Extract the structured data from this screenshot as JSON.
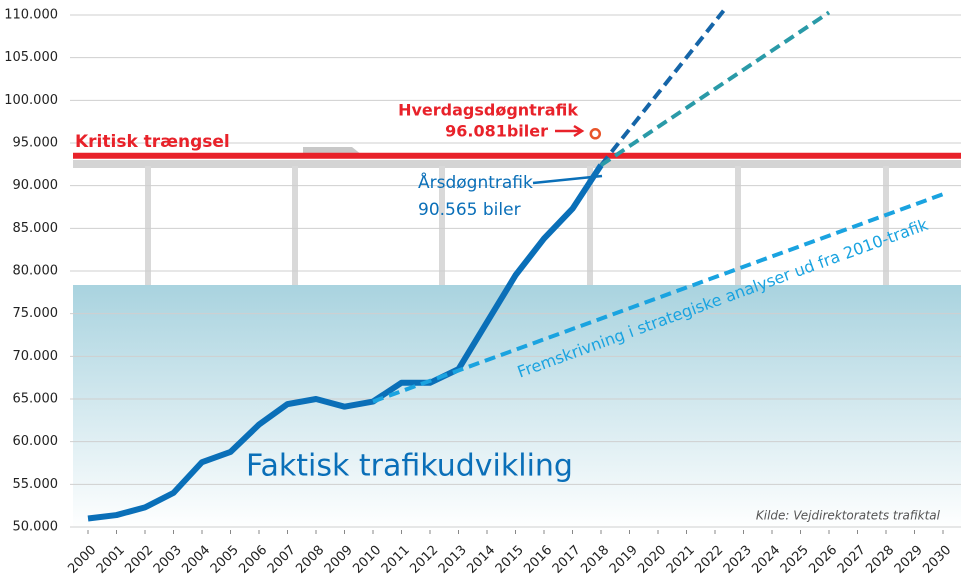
{
  "chart_data": {
    "type": "line",
    "xlim": [
      2000,
      2030
    ],
    "xticks": [
      2000,
      2001,
      2002,
      2003,
      2004,
      2005,
      2006,
      2007,
      2008,
      2009,
      2010,
      2011,
      2012,
      2013,
      2014,
      2015,
      2016,
      2017,
      2018,
      2019,
      2020,
      2021,
      2022,
      2023,
      2024,
      2025,
      2026,
      2027,
      2028,
      2029,
      2030
    ],
    "ylim": [
      50000,
      110000
    ],
    "yticks": [
      {
        "value": 50000,
        "label": "50.000"
      },
      {
        "value": 55000,
        "label": "55.000"
      },
      {
        "value": 60000,
        "label": "60.000"
      },
      {
        "value": 65000,
        "label": "65.000"
      },
      {
        "value": 70000,
        "label": "70.000"
      },
      {
        "value": 75000,
        "label": "75.000"
      },
      {
        "value": 80000,
        "label": "80.000"
      },
      {
        "value": 85000,
        "label": "85.000"
      },
      {
        "value": 90000,
        "label": "90.000"
      },
      {
        "value": 95000,
        "label": "95.000"
      },
      {
        "value": 100000,
        "label": "100.000"
      },
      {
        "value": 105000,
        "label": "105.000"
      },
      {
        "value": 110000,
        "label": "110.000"
      }
    ],
    "grid": true,
    "series": [
      {
        "name": "Faktisk trafikudvikling",
        "color": "#0a6fb8",
        "dash": false,
        "x": [
          2000,
          2001,
          2002,
          2003,
          2004,
          2005,
          2006,
          2007,
          2008,
          2009,
          2010,
          2011,
          2012,
          2013,
          2014,
          2015,
          2016,
          2017,
          2018
        ],
        "values": [
          51000,
          51400,
          52300,
          54000,
          57600,
          58800,
          62000,
          64400,
          65000,
          64100,
          64700,
          66900,
          66900,
          68500,
          74000,
          79500,
          83800,
          87300,
          92400
        ]
      },
      {
        "name": "Fremskrivning i strategiske analyser ud fra 2010-trafik",
        "color": "#1aa3e0",
        "dash": true,
        "x": [
          2010,
          2030
        ],
        "values": [
          64700,
          89000
        ]
      },
      {
        "color": "#1565a8",
        "dash": true,
        "x": [
          2018,
          2022.3
        ],
        "values": [
          92400,
          110500
        ]
      },
      {
        "color": "#2a9aa8",
        "dash": true,
        "x": [
          2018,
          2026
        ],
        "values": [
          92400,
          110300
        ]
      }
    ],
    "critical": {
      "label": "Kritisk trængsel",
      "value": 93500,
      "color": "#e8222a"
    },
    "point": {
      "label": "Hverdagsdøgntrafik",
      "value_label": "96.081biler",
      "x": 2017.8,
      "value": 96081,
      "color": "#e8552a"
    },
    "annotation": {
      "label": "Årsdøgntrafik",
      "value_label": "90.565 biler"
    },
    "source": "Kilde: Vejdirektoratets trafiktal"
  }
}
